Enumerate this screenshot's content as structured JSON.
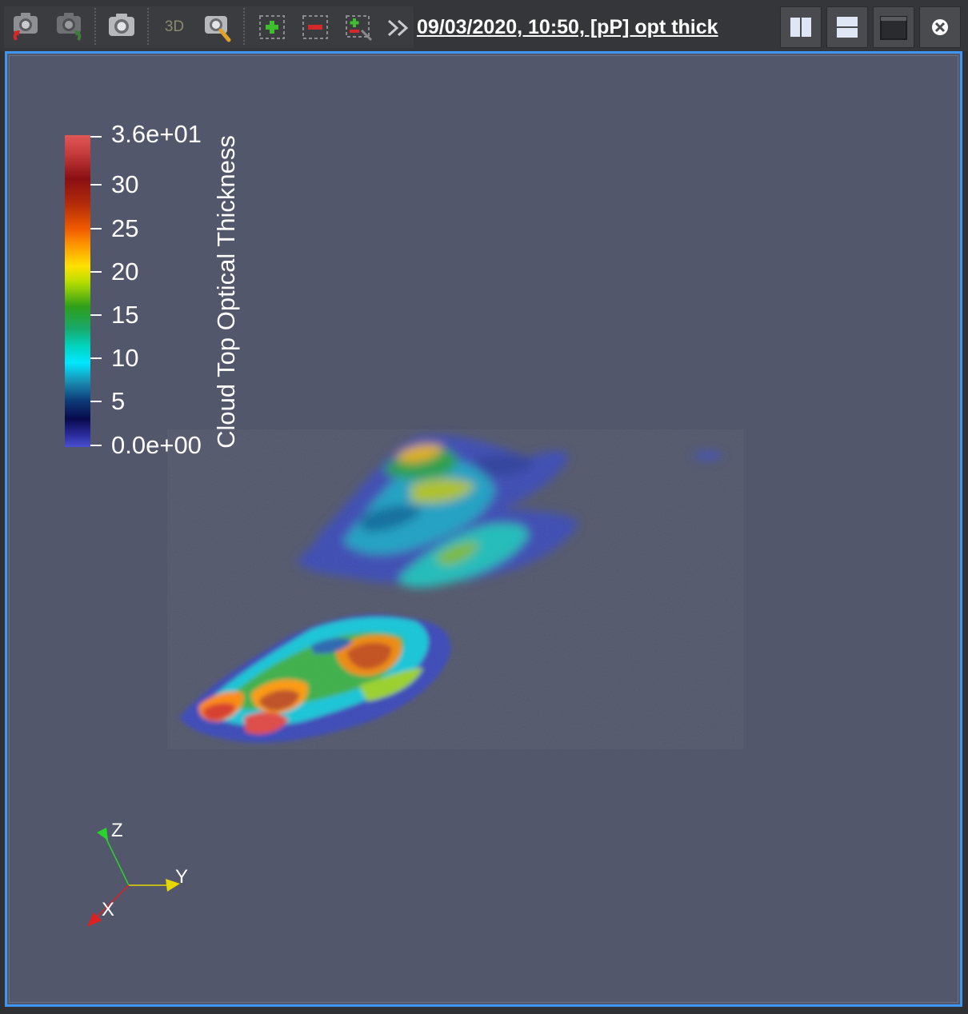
{
  "toolbar": {
    "buttons": [
      {
        "name": "reset-camera-icon"
      },
      {
        "name": "reset-camera-closest-icon"
      },
      {
        "name": "capture-screenshot-icon"
      },
      {
        "name": "toggle-3d-label",
        "label": "3D"
      },
      {
        "name": "zoom-to-data-icon"
      },
      {
        "name": "select-add-icon"
      },
      {
        "name": "select-subtract-icon"
      },
      {
        "name": "select-toggle-icon"
      },
      {
        "name": "more-tools-chevron-icon"
      }
    ],
    "three_d_label": "3D",
    "view_title": "09/03/2020, 10:50, [pP] opt thick"
  },
  "window_buttons": [
    {
      "name": "split-horizontal-icon"
    },
    {
      "name": "split-vertical-icon"
    },
    {
      "name": "maximize-icon"
    },
    {
      "name": "close-icon"
    }
  ],
  "legend": {
    "title": "Cloud Top Optical Thickness",
    "max_label": "3.6e+01",
    "min_label": "0.0e+00",
    "ticks": [
      "30",
      "25",
      "20",
      "15",
      "10",
      "5"
    ],
    "colors": [
      "#e15657",
      "#8a0f13",
      "#f05a00",
      "#ffe100",
      "#2f9f1a",
      "#00e7ff",
      "#080a4c",
      "#4a4fd2"
    ]
  },
  "axes": {
    "z": "Z",
    "y": "Y",
    "x": "X",
    "colors": {
      "z": "#2bd22b",
      "y": "#e6d600",
      "x": "#e02020"
    }
  },
  "colors": {
    "viewport_background": "#53576b",
    "active_border": "#3e95f2",
    "toolbar_background": "#353639"
  }
}
